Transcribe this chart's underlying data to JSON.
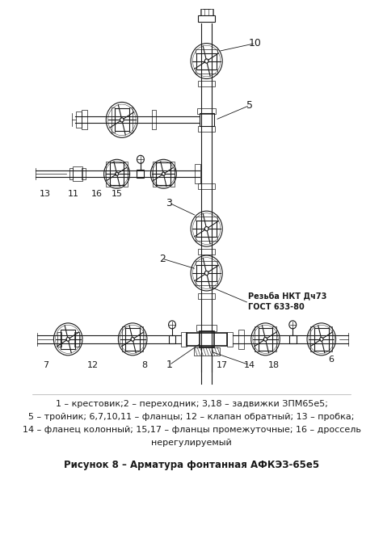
{
  "background_color": "#ffffff",
  "figure_width": 4.74,
  "figure_height": 6.77,
  "dpi": 100,
  "caption_lines": [
    "1 – крестовик;2 – переходник; 3,18 – задвижки ЗПМ65е5;",
    "5 – тройник; 6,7,10,11 – фланцы; 12 – клапан обратный; 13 – пробка;",
    "14 – фланец колонный; 15,17 – фланцы промежуточные; 16 – дроссель",
    "нерегулируемый"
  ],
  "figure_caption": "Рисунок 8 – Арматура фонтанная АФКЭЗ-65е5",
  "rezba_line1": "Резьба НКТ Дч73",
  "rezba_line2": "ГОСТ 633-80",
  "label_color": "#1a1a1a",
  "line_color": "#1a1a1a"
}
